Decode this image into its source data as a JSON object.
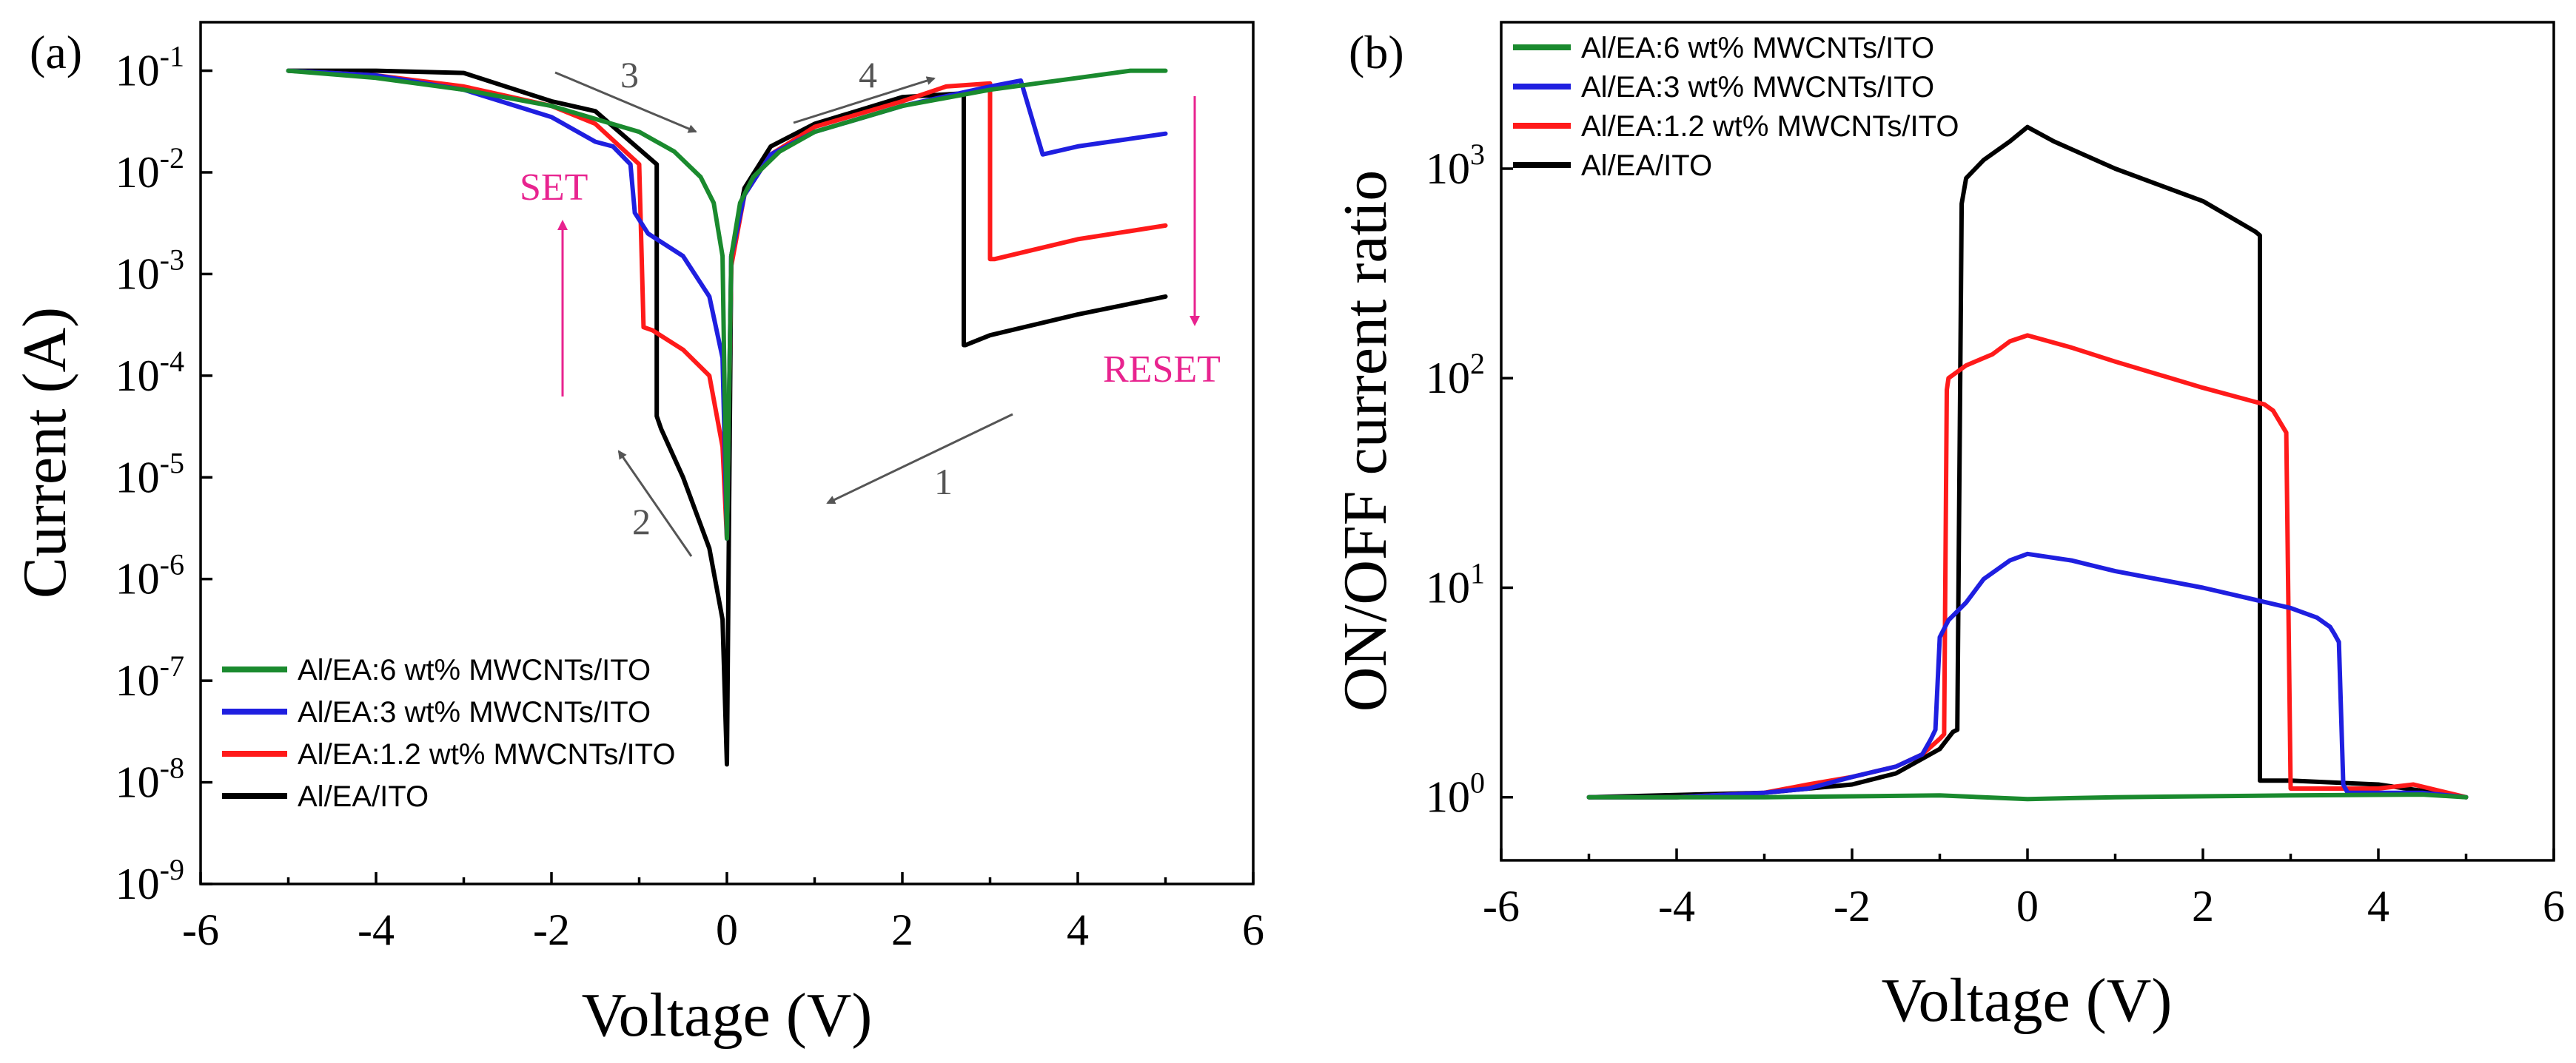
{
  "colors": {
    "green": "#1a8a2e",
    "blue": "#1f1fe0",
    "red": "#ff1a1a",
    "black": "#000000",
    "pink": "#e8238f",
    "arrow": "#666666"
  },
  "chart_data": [
    {
      "panel": "(a)",
      "type": "line",
      "xlabel": "Voltage (V)",
      "ylabel": "Current (A)",
      "xlim": [
        -6,
        6
      ],
      "ylim": [
        1e-09,
        0.3
      ],
      "yscale": "log",
      "xticks": [
        "-6",
        "-4",
        "-2",
        "0",
        "2",
        "4",
        "6"
      ],
      "yticks": [
        {
          "base": "10",
          "exp": "-9"
        },
        {
          "base": "10",
          "exp": "-8"
        },
        {
          "base": "10",
          "exp": "-7"
        },
        {
          "base": "10",
          "exp": "-6"
        },
        {
          "base": "10",
          "exp": "-5"
        },
        {
          "base": "10",
          "exp": "-4"
        },
        {
          "base": "10",
          "exp": "-3"
        },
        {
          "base": "10",
          "exp": "-2"
        },
        {
          "base": "10",
          "exp": "-1"
        }
      ],
      "legend_position": "bottom-left",
      "annotations": {
        "sweep_labels": [
          "1",
          "2",
          "3",
          "4"
        ],
        "set_label": "SET",
        "reset_label": "RESET"
      },
      "series": [
        {
          "name": "Al/EA:6 wt% MWCNTs/ITO",
          "color_key": "green",
          "x": [
            -5,
            -4,
            -3,
            -2,
            -1,
            -0.6,
            -0.3,
            -0.15,
            -0.05,
            0,
            0.05,
            0.15,
            0.3,
            0.6,
            1,
            2,
            3,
            4,
            4.6,
            5
          ],
          "y": [
            0.1,
            0.085,
            0.065,
            0.045,
            0.025,
            0.016,
            0.009,
            0.005,
            0.0015,
            2.5e-06,
            0.0015,
            0.005,
            0.009,
            0.016,
            0.025,
            0.045,
            0.065,
            0.085,
            0.1,
            0.1
          ]
        },
        {
          "name": "Al/EA:3 wt% MWCNTs/ITO",
          "color_key": "blue",
          "x": [
            5,
            4,
            3.6,
            3.6,
            3.35,
            3,
            2,
            1,
            0.5,
            0.2,
            0.05,
            0,
            -0.05,
            -0.2,
            -0.5,
            -0.9,
            -1.05,
            -1.1,
            -1.3,
            -1.5,
            -2,
            -3,
            -4,
            -5
          ],
          "y": [
            0.024,
            0.018,
            0.015,
            0.015,
            0.08,
            0.07,
            0.045,
            0.025,
            0.015,
            0.006,
            0.0015,
            2.5e-06,
            0.00015,
            0.0006,
            0.0015,
            0.0025,
            0.004,
            0.012,
            0.018,
            0.02,
            0.035,
            0.065,
            0.09,
            0.1
          ]
        },
        {
          "name": "Al/EA:1.2 wt% MWCNTs/ITO",
          "color_key": "red",
          "x": [
            5,
            4,
            3.05,
            3.0,
            3.0,
            2.5,
            2,
            1,
            0.5,
            0.2,
            0.05,
            0,
            -0.05,
            -0.2,
            -0.5,
            -0.85,
            -0.95,
            -1.0,
            -1.5,
            -2,
            -3,
            -4,
            -5
          ],
          "y": [
            0.003,
            0.0022,
            0.0014,
            0.0014,
            0.075,
            0.07,
            0.05,
            0.028,
            0.015,
            0.006,
            0.0012,
            2.5e-06,
            2e-05,
            0.0001,
            0.00018,
            0.00028,
            0.0003,
            0.012,
            0.03,
            0.045,
            0.07,
            0.09,
            0.1
          ]
        },
        {
          "name": "Al/EA/ITO",
          "color_key": "black",
          "x": [
            5,
            4,
            3,
            2.72,
            2.7,
            2.7,
            2,
            1,
            0.5,
            0.2,
            0.05,
            0,
            -0.05,
            -0.2,
            -0.5,
            -0.75,
            -0.8,
            -0.8,
            -1.5,
            -2,
            -3,
            -4,
            -5
          ],
          "y": [
            0.0006,
            0.0004,
            0.00025,
            0.0002,
            0.0002,
            0.06,
            0.055,
            0.03,
            0.018,
            0.007,
            0.0015,
            1.5e-08,
            4e-07,
            2e-06,
            1e-05,
            3e-05,
            4e-05,
            0.012,
            0.04,
            0.05,
            0.095,
            0.1,
            0.1
          ]
        }
      ]
    },
    {
      "panel": "(b)",
      "type": "line",
      "xlabel": "Voltage (V)",
      "ylabel": "ON/OFF current ratio",
      "xlim": [
        -6,
        6
      ],
      "ylim": [
        0.5,
        5000
      ],
      "yscale": "log",
      "xticks": [
        "-6",
        "-4",
        "-2",
        "0",
        "2",
        "4",
        "6"
      ],
      "yticks": [
        {
          "base": "10",
          "exp": "0"
        },
        {
          "base": "10",
          "exp": "1"
        },
        {
          "base": "10",
          "exp": "2"
        },
        {
          "base": "10",
          "exp": "3"
        }
      ],
      "legend_position": "top-left",
      "series": [
        {
          "name": "Al/EA:6 wt% MWCNTs/ITO",
          "color_key": "green",
          "x": [
            -5,
            -3,
            -1,
            0,
            1,
            3,
            4.5,
            5
          ],
          "y": [
            1.0,
            1.0,
            1.02,
            0.98,
            1.0,
            1.02,
            1.03,
            1.0
          ]
        },
        {
          "name": "Al/EA:3 wt% MWCNTs/ITO",
          "color_key": "blue",
          "x": [
            -5,
            -4,
            -3,
            -2.5,
            -2,
            -1.5,
            -1.2,
            -1.1,
            -1.05,
            -1.0,
            -0.9,
            -0.7,
            -0.5,
            -0.2,
            0,
            0.5,
            1,
            2,
            3,
            3.3,
            3.45,
            3.5,
            3.55,
            3.6,
            3.65,
            4,
            4.5,
            5
          ],
          "y": [
            1.0,
            1.0,
            1.05,
            1.1,
            1.25,
            1.4,
            1.6,
            1.9,
            2.1,
            5.8,
            7.0,
            8.5,
            11,
            13.5,
            14.5,
            13.5,
            12,
            10,
            8,
            7.2,
            6.5,
            6.0,
            5.5,
            1.15,
            1.05,
            1.05,
            1.05,
            1.0
          ]
        },
        {
          "name": "Al/EA:1.2 wt% MWCNTs/ITO",
          "color_key": "red",
          "x": [
            -5,
            -4,
            -3,
            -2.5,
            -2,
            -1.5,
            -1.2,
            -1.0,
            -0.95,
            -0.92,
            -0.9,
            -0.7,
            -0.4,
            -0.2,
            0,
            0.5,
            1,
            2,
            2.7,
            2.8,
            2.95,
            3.0,
            3.05,
            4,
            4.4,
            5
          ],
          "y": [
            1.0,
            1.0,
            1.05,
            1.15,
            1.25,
            1.4,
            1.6,
            1.9,
            2.0,
            88,
            100,
            115,
            130,
            150,
            160,
            140,
            120,
            90,
            75,
            70,
            55,
            1.1,
            1.1,
            1.1,
            1.15,
            1.0
          ]
        },
        {
          "name": "Al/EA/ITO",
          "color_key": "black",
          "x": [
            -5,
            -3,
            -2,
            -1.5,
            -1.0,
            -0.85,
            -0.8,
            -0.75,
            -0.7,
            -0.5,
            -0.2,
            0,
            0.3,
            1,
            2,
            2.6,
            2.65,
            2.65,
            3,
            4,
            5
          ],
          "y": [
            1.0,
            1.05,
            1.15,
            1.3,
            1.7,
            2.05,
            2.1,
            680,
            900,
            1100,
            1350,
            1580,
            1350,
            1000,
            700,
            500,
            480,
            1.2,
            1.2,
            1.15,
            1.0
          ]
        }
      ]
    }
  ]
}
